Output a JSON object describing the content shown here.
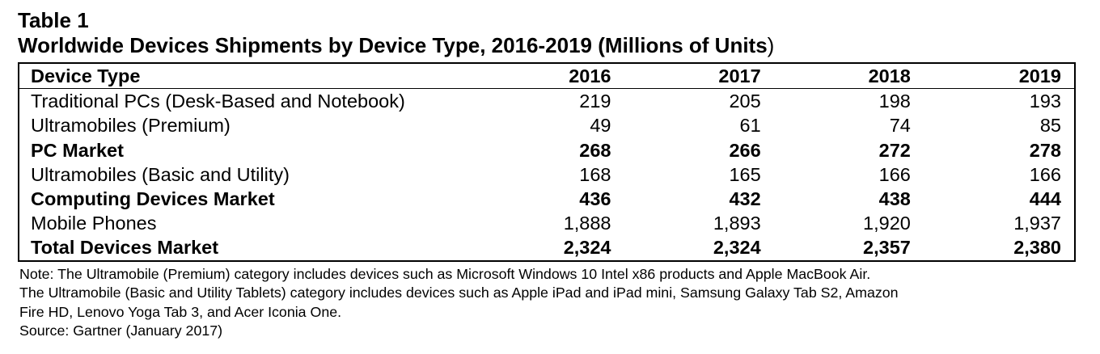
{
  "table": {
    "number": "Table 1",
    "title_main": "Worldwide Devices Shipments by Device Type, 2016-2019",
    "title_units": "(Millions of Units",
    "title_close": ")",
    "header": {
      "label": "Device Type",
      "years": [
        "2016",
        "2017",
        "2018",
        "2019"
      ]
    },
    "rows": [
      {
        "label": "Traditional PCs (Desk-Based and Notebook)",
        "bold": false,
        "values": [
          "219",
          "205",
          "198",
          "193"
        ]
      },
      {
        "label": "Ultramobiles (Premium)",
        "bold": false,
        "values": [
          "49",
          "61",
          "74",
          "85"
        ]
      },
      {
        "label": "PC Market",
        "bold": true,
        "values": [
          "268",
          "266",
          "272",
          "278"
        ]
      },
      {
        "label": "Ultramobiles (Basic and Utility)",
        "bold": false,
        "values": [
          "168",
          "165",
          "166",
          "166"
        ]
      },
      {
        "label": "Computing Devices Market",
        "bold": true,
        "values": [
          "436",
          "432",
          "438",
          "444"
        ]
      },
      {
        "label": "Mobile Phones",
        "bold": false,
        "values": [
          "1,888",
          "1,893",
          "1,920",
          "1,937"
        ]
      },
      {
        "label": "Total Devices Market",
        "bold": true,
        "values": [
          "2,324",
          "2,324",
          "2,357",
          "2,380"
        ]
      }
    ]
  },
  "notes": [
    "Note: The Ultramobile (Premium) category includes devices such as Microsoft Windows 10 Intel x86 products and Apple MacBook Air.",
    "The Ultramobile (Basic and Utility Tablets) category includes devices such as Apple iPad and iPad mini, Samsung Galaxy Tab S2, Amazon",
    "Fire HD, Lenovo Yoga Tab 3, and Acer Iconia One.",
    "Source: Gartner (January 2017)"
  ]
}
